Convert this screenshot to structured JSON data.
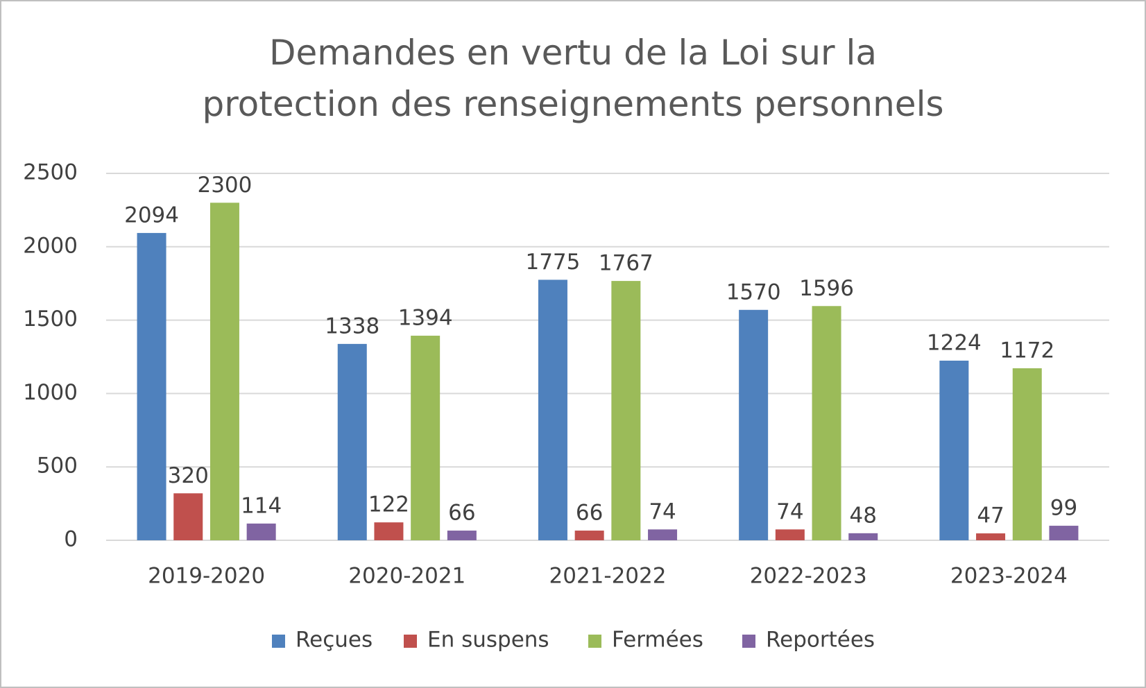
{
  "chart_data": {
    "type": "bar",
    "title": "Demandes en vertu de la Loi sur la protection des renseignements personnels",
    "categories": [
      "2019-2020",
      "2020-2021",
      "2021-2022",
      "2022-2023",
      "2023-2024"
    ],
    "series": [
      {
        "name": "Reçues",
        "color": "#4f81bd",
        "values": [
          2094,
          1338,
          1775,
          1570,
          1224
        ]
      },
      {
        "name": "En suspens",
        "color": "#c0504d",
        "values": [
          320,
          122,
          66,
          74,
          47
        ]
      },
      {
        "name": "Fermées",
        "color": "#9bbb59",
        "values": [
          2300,
          1394,
          1767,
          1596,
          1172
        ]
      },
      {
        "name": "Reportées",
        "color": "#8064a2",
        "values": [
          114,
          66,
          74,
          48,
          99
        ]
      }
    ],
    "ylim": [
      0,
      2500
    ],
    "yticks": [
      0,
      500,
      1000,
      1500,
      2000,
      2500
    ],
    "grid": true,
    "legend": "bottom"
  }
}
